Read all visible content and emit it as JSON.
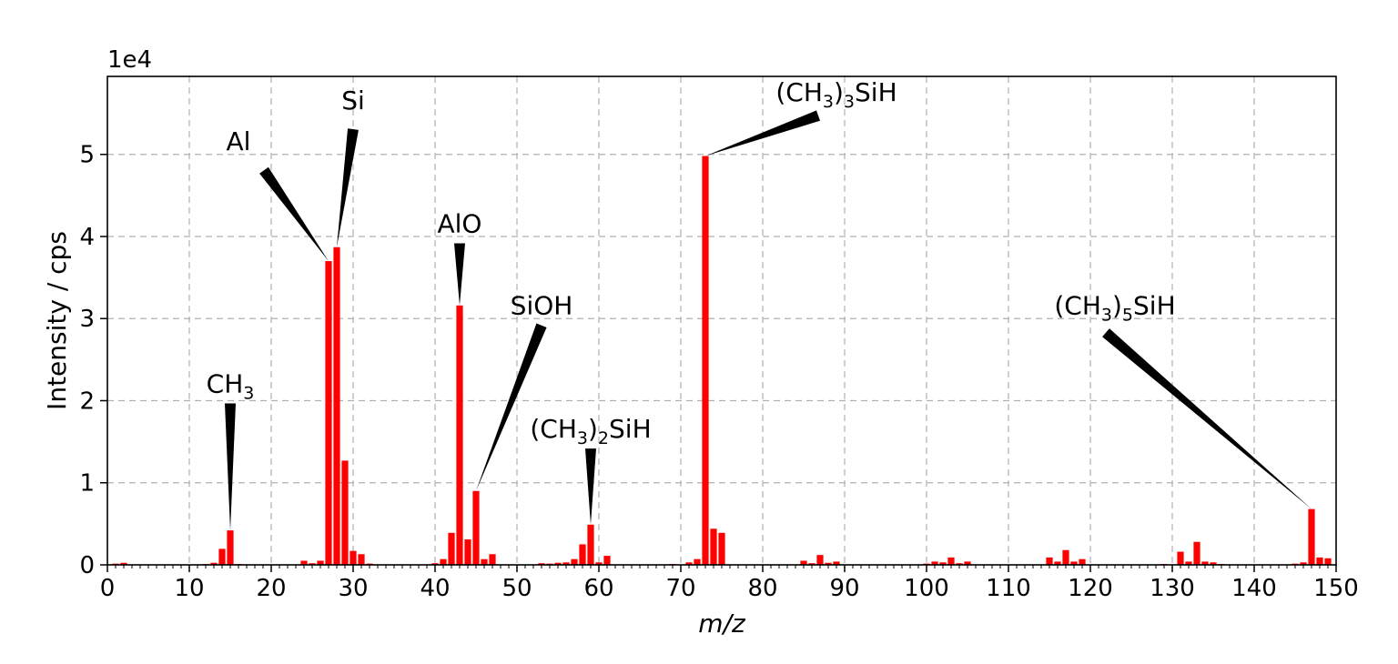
{
  "chart_data": {
    "type": "bar",
    "xlabel": "m/z",
    "ylabel": "Intensity / cps",
    "y_offset_label": "1e4",
    "xlim": [
      0,
      150
    ],
    "ylim": [
      0,
      59500
    ],
    "x_ticks": [
      0,
      10,
      20,
      30,
      40,
      50,
      60,
      70,
      80,
      90,
      100,
      110,
      120,
      130,
      140,
      150
    ],
    "x_tick_labels": [
      "0",
      "10",
      "20",
      "30",
      "40",
      "50",
      "60",
      "70",
      "80",
      "90",
      "100",
      "110",
      "120",
      "130",
      "140",
      "150"
    ],
    "y_ticks": [
      0,
      10000,
      20000,
      30000,
      40000,
      50000
    ],
    "y_tick_labels": [
      "0",
      "1",
      "2",
      "3",
      "4",
      "5"
    ],
    "grid": true,
    "bar_color": "#ff0000",
    "x": [
      1,
      2,
      12,
      13,
      14,
      15,
      16,
      24,
      25,
      26,
      27,
      28,
      29,
      30,
      31,
      32,
      40,
      41,
      42,
      43,
      44,
      45,
      46,
      47,
      53,
      54,
      55,
      56,
      57,
      58,
      59,
      60,
      61,
      69,
      71,
      72,
      73,
      74,
      75,
      85,
      86,
      87,
      88,
      89,
      100,
      101,
      102,
      103,
      104,
      105,
      115,
      116,
      117,
      118,
      119,
      129,
      131,
      132,
      133,
      134,
      135,
      136,
      145,
      146,
      147,
      148,
      149
    ],
    "values": [
      150,
      250,
      100,
      250,
      1950,
      4200,
      100,
      500,
      200,
      500,
      37000,
      38700,
      12700,
      1700,
      1300,
      150,
      200,
      700,
      3900,
      31600,
      3100,
      9000,
      700,
      1300,
      200,
      150,
      250,
      300,
      700,
      2500,
      4900,
      300,
      1100,
      100,
      300,
      700,
      49800,
      4400,
      3900,
      500,
      200,
      1200,
      250,
      400,
      150,
      400,
      300,
      900,
      200,
      400,
      900,
      400,
      1800,
      400,
      700,
      100,
      1600,
      400,
      2800,
      400,
      300,
      100,
      150,
      300,
      6800,
      900,
      800
    ],
    "annotations": [
      {
        "label": "CH3",
        "sub": "3",
        "base": "CH",
        "tail": "",
        "x": 15,
        "y": 4200,
        "text_x": 15,
        "text_y": 21000
      },
      {
        "label": "Al",
        "sub": "",
        "base": "Al",
        "tail": "",
        "x": 27,
        "y": 37000,
        "text_x": 16,
        "text_y": 50500
      },
      {
        "label": "Si",
        "sub": "",
        "base": "Si",
        "tail": "",
        "x": 28,
        "y": 38700,
        "text_x": 30,
        "text_y": 55500
      },
      {
        "label": "AlO",
        "sub": "",
        "base": "AlO",
        "tail": "",
        "x": 43,
        "y": 31600,
        "text_x": 43,
        "text_y": 40500
      },
      {
        "label": "SiOH",
        "sub": "",
        "base": "SiOH",
        "tail": "",
        "x": 45,
        "y": 9000,
        "text_x": 53,
        "text_y": 30500
      },
      {
        "label": "(CH3)2SiH",
        "sub": "2",
        "base": "(CH",
        "tail": ")",
        "rest": "SiH",
        "x": 59,
        "y": 4900,
        "text_x": 59,
        "text_y": 15500
      },
      {
        "label": "(CH3)3SiH",
        "sub": "3",
        "base": "(CH",
        "tail": ")",
        "rest": "SiH",
        "x": 73,
        "y": 49800,
        "text_x": 89,
        "text_y": 56500
      },
      {
        "label": "(CH3)5SiH",
        "sub": "5",
        "base": "(CH",
        "tail": ")",
        "rest": "SiH",
        "x": 147,
        "y": 6800,
        "text_x": 123,
        "text_y": 30500
      }
    ]
  },
  "annotation_text": {
    "ch3_base": "CH",
    "ch3_sub": "3",
    "al": "Al",
    "si": "Si",
    "alo": "AlO",
    "sioh": "SiOH",
    "ch32_a": "(CH",
    "ch32_sub": "3",
    "ch32_b": ")",
    "ch32_sub2": "2",
    "ch32_c": "SiH",
    "ch33_a": "(CH",
    "ch33_sub": "3",
    "ch33_b": ")",
    "ch33_sub2": "3",
    "ch33_c": "SiH",
    "ch35_a": "(CH",
    "ch35_sub": "3",
    "ch35_b": ")",
    "ch35_sub2": "5",
    "ch35_c": "SiH"
  }
}
